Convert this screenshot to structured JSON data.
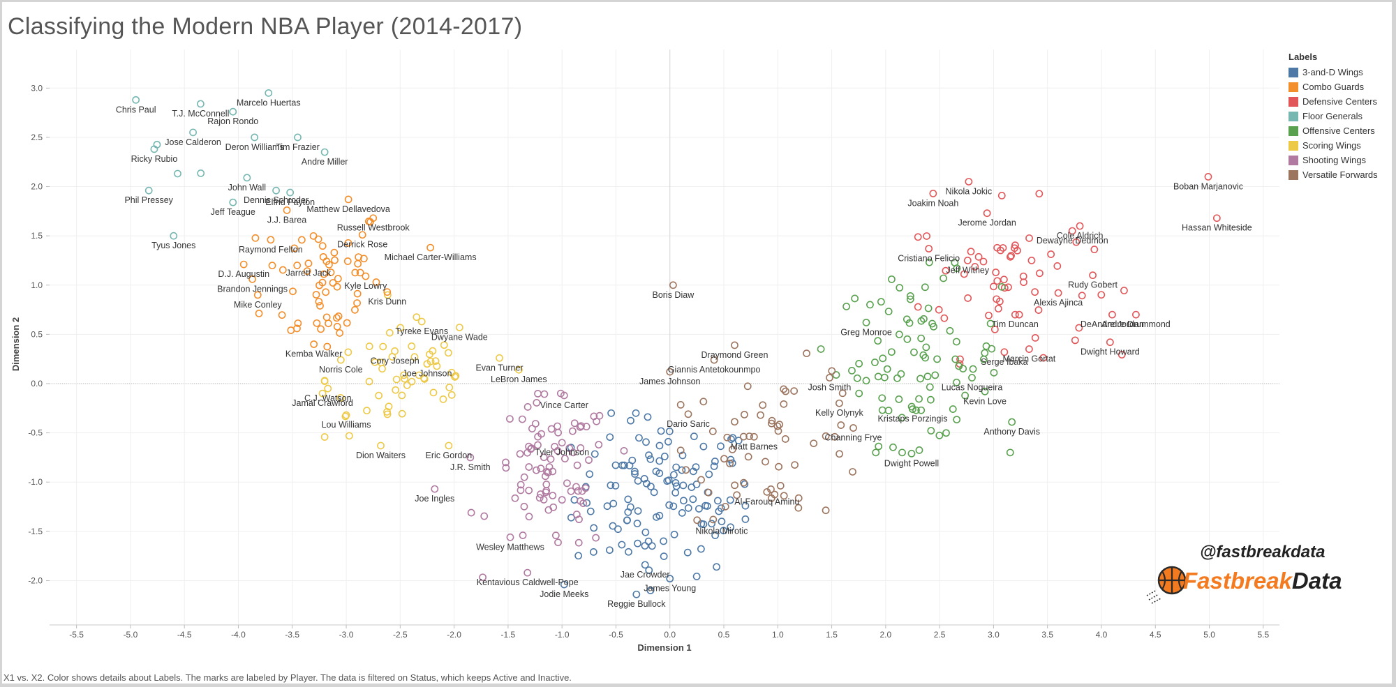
{
  "page": {
    "title": "Classifying the Modern NBA Player (2014-2017)",
    "caption": "X1 vs. X2.  Color shows details about Labels.  The marks are labeled by Player. The data is filtered on Status, which keeps Active and Inactive."
  },
  "branding": {
    "handle": "@fastbreakdata",
    "name_part1": "Fastbreak",
    "name_part2": "Data",
    "orange": "#f47a1f"
  },
  "legend": {
    "title": "Labels",
    "items": [
      {
        "label": "3-and-D Wings",
        "color": "#4e79a7"
      },
      {
        "label": "Combo Guards",
        "color": "#f28e2b"
      },
      {
        "label": "Defensive Centers",
        "color": "#e15759"
      },
      {
        "label": "Floor Generals",
        "color": "#76b7b2"
      },
      {
        "label": "Offensive Centers",
        "color": "#59a14f"
      },
      {
        "label": "Scoring Wings",
        "color": "#edc948"
      },
      {
        "label": "Shooting Wings",
        "color": "#b07aa1"
      },
      {
        "label": "Versatile Forwards",
        "color": "#9c755f"
      }
    ]
  },
  "chart_data": {
    "type": "scatter",
    "xlabel": "Dimension 1",
    "ylabel": "Dimension 2",
    "xlim": [
      -5.75,
      5.65
    ],
    "ylim": [
      -2.45,
      3.25
    ],
    "xticks": [
      "-5.5",
      "-5.0",
      "-4.5",
      "-4.0",
      "-3.5",
      "-3.0",
      "-2.5",
      "-2.0",
      "-1.5",
      "-1.0",
      "-0.5",
      "0.0",
      "0.5",
      "1.0",
      "1.5",
      "2.0",
      "2.5",
      "3.0",
      "3.5",
      "4.0",
      "4.5",
      "5.0",
      "5.5"
    ],
    "yticks": [
      "-2.0",
      "-1.5",
      "-1.0",
      "-0.5",
      "0.0",
      "0.5",
      "1.0",
      "1.5",
      "2.0",
      "2.5",
      "3.0"
    ],
    "grid": true,
    "legend_position": "right",
    "labeled_points": [
      {
        "name": "Chris Paul",
        "x": -4.95,
        "y": 2.88,
        "label": "Chris Paul",
        "group": 3
      },
      {
        "name": "T.J. McConnell",
        "x": -4.35,
        "y": 2.84,
        "label": "T.J. McConnell",
        "group": 3
      },
      {
        "name": "Marcelo Huertas",
        "x": -3.72,
        "y": 2.95,
        "label": "Marcelo Huertas",
        "group": 3
      },
      {
        "name": "Rajon Rondo",
        "x": -4.05,
        "y": 2.76,
        "label": "Rajon Rondo",
        "group": 3
      },
      {
        "name": "Tim Frazier",
        "x": -3.45,
        "y": 2.5,
        "label": "Tim Frazier",
        "group": 3
      },
      {
        "name": "Jose Calderon",
        "x": -4.42,
        "y": 2.55,
        "label": "Jose Calderon",
        "group": 3
      },
      {
        "name": "Deron Williams",
        "x": -3.85,
        "y": 2.5,
        "label": "Deron Williams",
        "group": 3
      },
      {
        "name": "Ricky Rubio",
        "x": -4.78,
        "y": 2.38,
        "label": "Ricky Rubio",
        "group": 3
      },
      {
        "name": "Andre Miller",
        "x": -3.2,
        "y": 2.35,
        "label": "Andre Miller",
        "group": 3
      },
      {
        "name": "John Wall",
        "x": -3.92,
        "y": 2.09,
        "label": "John Wall",
        "group": 3
      },
      {
        "name": "Elfrid Payton",
        "x": -3.52,
        "y": 1.94,
        "label": "Elfrid Payton",
        "group": 3
      },
      {
        "name": "Dennis Schroder",
        "x": -3.65,
        "y": 1.96,
        "label": "Dennis Schroder",
        "group": 3
      },
      {
        "name": "Phil Pressey",
        "x": -4.83,
        "y": 1.96,
        "label": "Phil Pressey",
        "group": 3
      },
      {
        "name": "Jeff Teague",
        "x": -4.05,
        "y": 1.84,
        "label": "Jeff Teague",
        "group": 3
      },
      {
        "name": "Tyus Jones",
        "x": -4.6,
        "y": 1.5,
        "label": "Tyus Jones",
        "group": 3
      },
      {
        "name": "Matthew Dellavedova",
        "x": -2.98,
        "y": 1.87,
        "label": "Matthew Dellavedova",
        "group": 1
      },
      {
        "name": "J.J. Barea",
        "x": -3.55,
        "y": 1.76,
        "label": "J.J. Barea",
        "group": 1
      },
      {
        "name": "Russell Westbrook",
        "x": -2.75,
        "y": 1.68,
        "label": "Russell Westbrook",
        "group": 1
      },
      {
        "name": "Derrick Rose",
        "x": -2.85,
        "y": 1.51,
        "label": "Derrick Rose",
        "group": 1
      },
      {
        "name": "Raymond Felton",
        "x": -3.7,
        "y": 1.46,
        "label": "Raymond Felton",
        "group": 1
      },
      {
        "name": "Michael Carter-Williams",
        "x": -2.22,
        "y": 1.38,
        "label": "Michael Carter-Williams",
        "group": 1
      },
      {
        "name": "D.J. Augustin",
        "x": -3.95,
        "y": 1.21,
        "label": "D.J. Augustin",
        "group": 1
      },
      {
        "name": "Jarrett Jack",
        "x": -3.35,
        "y": 1.22,
        "label": "Jarrett Jack",
        "group": 1
      },
      {
        "name": "Brandon Jennings",
        "x": -3.87,
        "y": 1.06,
        "label": "Brandon Jennings",
        "group": 1
      },
      {
        "name": "Kyle Lowry",
        "x": -2.82,
        "y": 1.09,
        "label": "Kyle Lowry",
        "group": 1
      },
      {
        "name": "Mike Conley",
        "x": -3.82,
        "y": 0.9,
        "label": "Mike Conley",
        "group": 1
      },
      {
        "name": "Kris Dunn",
        "x": -2.62,
        "y": 0.93,
        "label": "Kris Dunn",
        "group": 1
      },
      {
        "name": "Kemba Walker",
        "x": -3.3,
        "y": 0.4,
        "label": "Kemba Walker",
        "group": 1
      },
      {
        "name": "Tyreke Evans",
        "x": -2.3,
        "y": 0.63,
        "label": "Tyreke Evans",
        "group": 5
      },
      {
        "name": "Dwyane Wade",
        "x": -1.95,
        "y": 0.57,
        "label": "Dwyane Wade",
        "group": 5
      },
      {
        "name": "Cory Joseph",
        "x": -2.55,
        "y": 0.33,
        "label": "Cory Joseph",
        "group": 5
      },
      {
        "name": "Evan Turner",
        "x": -1.58,
        "y": 0.26,
        "label": "Evan Turner",
        "group": 5
      },
      {
        "name": "Norris Cole",
        "x": -3.05,
        "y": 0.24,
        "label": "Norris Cole",
        "group": 5
      },
      {
        "name": "Joe Johnson",
        "x": -2.25,
        "y": 0.2,
        "label": "Joe Johnson",
        "group": 5
      },
      {
        "name": "C.J. Watson",
        "x": -3.17,
        "y": -0.05,
        "label": "C.J. Watson",
        "group": 5
      },
      {
        "name": "LeBron James",
        "x": -1.4,
        "y": 0.14,
        "label": "LeBron James",
        "group": 5
      },
      {
        "name": "Jamal Crawford",
        "x": -3.22,
        "y": -0.1,
        "label": "Jamal Crawford",
        "group": 5
      },
      {
        "name": "Lou Williams",
        "x": -3.0,
        "y": -0.32,
        "label": "Lou Williams",
        "group": 5
      },
      {
        "name": "Dion Waiters",
        "x": -2.68,
        "y": -0.63,
        "label": "Dion Waiters",
        "group": 5
      },
      {
        "name": "Eric Gordon",
        "x": -2.05,
        "y": -0.63,
        "label": "Eric Gordon",
        "group": 5
      },
      {
        "name": "Vince Carter",
        "x": -0.98,
        "y": -0.12,
        "label": "Vince Carter",
        "group": 6
      },
      {
        "name": "Tyler Johnson",
        "x": -1.0,
        "y": -0.6,
        "label": "Tyler Johnson",
        "group": 6
      },
      {
        "name": "J.R. Smith",
        "x": -1.85,
        "y": -0.75,
        "label": "J.R. Smith",
        "group": 6
      },
      {
        "name": "Joe Ingles",
        "x": -2.18,
        "y": -1.07,
        "label": "Joe Ingles",
        "group": 6
      },
      {
        "name": "Wesley Matthews",
        "x": -1.48,
        "y": -1.56,
        "label": "Wesley Matthews",
        "group": 6
      },
      {
        "name": "Kentavious Caldwell-Pope",
        "x": -1.32,
        "y": -1.92,
        "label": "Kentavious Caldwell-Pope",
        "group": 6
      },
      {
        "name": "Jodie Meeks",
        "x": -0.98,
        "y": -2.04,
        "label": "Jodie Meeks",
        "group": 0
      },
      {
        "name": "Jae Crowder",
        "x": -0.23,
        "y": -1.84,
        "label": "Jae Crowder",
        "group": 0
      },
      {
        "name": "James Young",
        "x": 0.0,
        "y": -1.98,
        "label": "James Young",
        "group": 0
      },
      {
        "name": "Reggie Bullock",
        "x": -0.31,
        "y": -2.14,
        "label": "Reggie Bullock",
        "group": 0
      },
      {
        "name": "Boris Diaw",
        "x": 0.03,
        "y": 1.0,
        "label": "Boris Diaw",
        "group": 7
      },
      {
        "name": "Draymond Green",
        "x": 0.6,
        "y": 0.39,
        "label": "Draymond Green",
        "group": 7
      },
      {
        "name": "Giannis Antetokounmpo",
        "x": 0.41,
        "y": 0.24,
        "label": "Giannis Antetokounmpo",
        "group": 7
      },
      {
        "name": "James Johnson",
        "x": 0.0,
        "y": 0.12,
        "label": "James Johnson",
        "group": 7
      },
      {
        "name": "Dario Saric",
        "x": 0.17,
        "y": -0.31,
        "label": "Dario Saric",
        "group": 7
      },
      {
        "name": "Kelly Olynyk",
        "x": 1.57,
        "y": -0.2,
        "label": "Kelly Olynyk",
        "group": 7
      },
      {
        "name": "Josh Smith",
        "x": 1.48,
        "y": 0.06,
        "label": "Josh Smith",
        "group": 7
      },
      {
        "name": "Matt Barnes",
        "x": 0.78,
        "y": -0.54,
        "label": "Matt Barnes",
        "group": 7
      },
      {
        "name": "Channing Frye",
        "x": 1.7,
        "y": -0.45,
        "label": "Channing Frye",
        "group": 7
      },
      {
        "name": "Al-Farouq Aminu",
        "x": 0.9,
        "y": -1.1,
        "label": "Al-Farouq Aminu",
        "group": 7
      },
      {
        "name": "Nikola Mirotic",
        "x": 0.48,
        "y": -1.4,
        "label": "Nikola Mirotic",
        "group": 0
      },
      {
        "name": "Greg Monroe",
        "x": 1.82,
        "y": 0.62,
        "label": "Greg Monroe",
        "group": 4
      },
      {
        "name": "Lucas Nogueira",
        "x": 2.8,
        "y": 0.06,
        "label": "Lucas Nogueira",
        "group": 4
      },
      {
        "name": "Kevin Love",
        "x": 2.92,
        "y": -0.08,
        "label": "Kevin Love",
        "group": 4
      },
      {
        "name": "Kristaps Porzingis",
        "x": 2.25,
        "y": -0.26,
        "label": "Kristaps Porzingis",
        "group": 4
      },
      {
        "name": "Anthony Davis",
        "x": 3.17,
        "y": -0.39,
        "label": "Anthony Davis",
        "group": 4
      },
      {
        "name": "Dwight Powell",
        "x": 2.24,
        "y": -0.71,
        "label": "Dwight Powell",
        "group": 4
      },
      {
        "name": "Nikola Jokic",
        "x": 2.77,
        "y": 2.05,
        "label": "Nikola Jokic",
        "group": 2
      },
      {
        "name": "Joakim Noah",
        "x": 2.44,
        "y": 1.93,
        "label": "Joakim Noah",
        "group": 2
      },
      {
        "name": "Jerome Jordan",
        "x": 2.94,
        "y": 1.73,
        "label": "Jerome Jordan",
        "group": 2
      },
      {
        "name": "Cole Aldrich",
        "x": 3.8,
        "y": 1.6,
        "label": "Cole Aldrich",
        "group": 2
      },
      {
        "name": "Dewayne Dedmon",
        "x": 3.73,
        "y": 1.55,
        "label": "Dewayne Dedmon",
        "group": 2
      },
      {
        "name": "Cristiano Felicio",
        "x": 2.4,
        "y": 1.37,
        "label": "Cristiano Felicio",
        "group": 2
      },
      {
        "name": "Jeff Withey",
        "x": 2.76,
        "y": 1.25,
        "label": "Jeff Withey",
        "group": 2
      },
      {
        "name": "Rudy Gobert",
        "x": 3.92,
        "y": 1.1,
        "label": "Rudy Gobert",
        "group": 2
      },
      {
        "name": "Alexis Ajinca",
        "x": 3.6,
        "y": 0.92,
        "label": "Alexis Ajinca",
        "group": 2
      },
      {
        "name": "Tim Duncan",
        "x": 3.2,
        "y": 0.7,
        "label": "Tim Duncan",
        "group": 2
      },
      {
        "name": "DeAndre Jordan",
        "x": 4.1,
        "y": 0.7,
        "label": "DeAndre Jordan",
        "group": 2
      },
      {
        "name": "Andre Drummond",
        "x": 4.32,
        "y": 0.7,
        "label": "Andre Drummond",
        "group": 2
      },
      {
        "name": "Marcin Gortat",
        "x": 3.33,
        "y": 0.35,
        "label": "Marcin Gortat",
        "group": 2
      },
      {
        "name": "Serge Ibaka",
        "x": 3.1,
        "y": 0.32,
        "label": "Serge Ibaka",
        "group": 2
      },
      {
        "name": "Dwight Howard",
        "x": 4.08,
        "y": 0.42,
        "label": "Dwight Howard",
        "group": 2
      },
      {
        "name": "Boban Marjanovic",
        "x": 4.99,
        "y": 2.1,
        "label": "Boban Marjanovic",
        "group": 2
      },
      {
        "name": "Hassan Whiteside",
        "x": 5.07,
        "y": 1.68,
        "label": "Hassan Whiteside",
        "group": 2
      }
    ],
    "unlabeled_point_counts": {
      "3-and-D Wings": 120,
      "Combo Guards": 55,
      "Defensive Centers": 55,
      "Floor Generals": 3,
      "Offensive Centers": 85,
      "Scoring Wings": 50,
      "Shooting Wings": 85,
      "Versatile Forwards": 55
    }
  }
}
